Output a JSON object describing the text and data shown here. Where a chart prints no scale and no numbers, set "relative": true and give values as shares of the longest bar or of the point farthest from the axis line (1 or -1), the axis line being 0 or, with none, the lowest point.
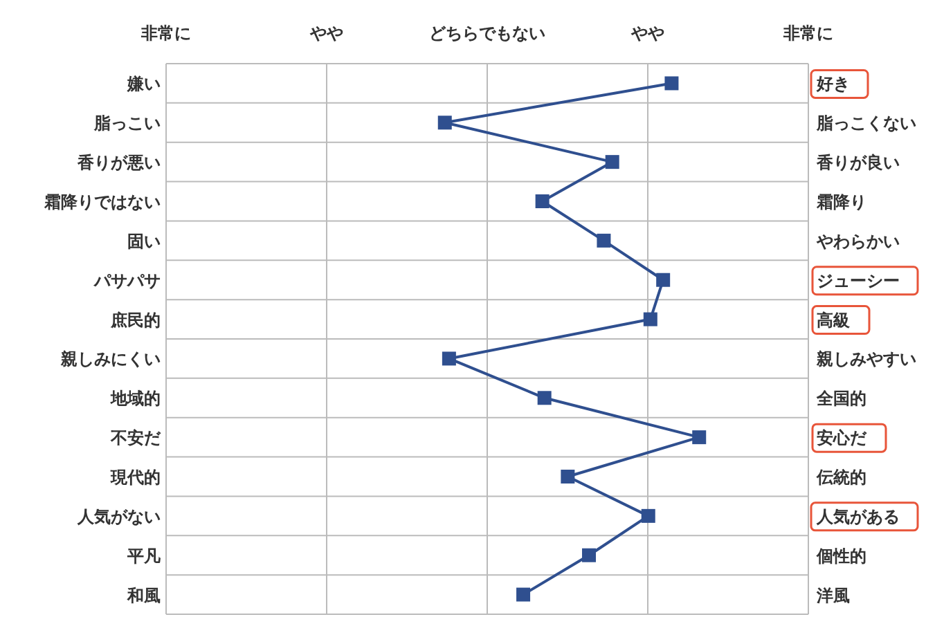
{
  "chart_data": {
    "type": "line",
    "orientation": "horizontal",
    "relative": true,
    "categories": [
      "嫌い",
      "脂っこい",
      "香りが悪い",
      "霜降りではない",
      "固い",
      "パサパサ",
      "庶民的",
      "親しみにくい",
      "地域的",
      "不安だ",
      "現代的",
      "人気がない",
      "平凡",
      "和風"
    ],
    "y2_categories": [
      "好き",
      "脂っこくない",
      "香りが良い",
      "霜降り",
      "やわらかい",
      "ジューシー",
      "高級",
      "親しみやすい",
      "全国的",
      "安心だ",
      "伝統的",
      "人気がある",
      "個性的",
      "洋風"
    ],
    "series": [
      {
        "color": "#2f4f8f",
        "values": [
          0.87,
          -0.2,
          0.59,
          0.26,
          0.55,
          0.83,
          0.77,
          -0.18,
          0.27,
          1,
          0.38,
          0.76,
          0.48,
          0.17
        ]
      }
    ],
    "annotations": [
      "非常に",
      "やや",
      "どちらでもない",
      "やや",
      "非常に"
    ],
    "grid": true,
    "marker": "square",
    "line_style": "solid"
  }
}
